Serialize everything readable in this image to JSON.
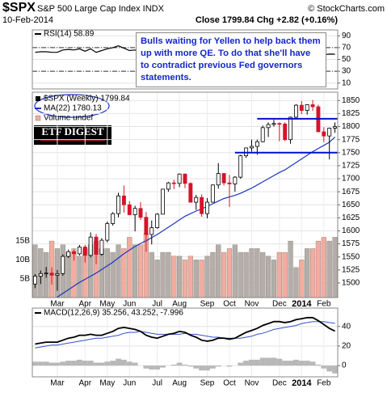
{
  "header": {
    "symbol": "$SPX",
    "name": "S&P 500 Large Cap Index INDX",
    "source": "© StockCharts.com",
    "date": "10-Feb-2014",
    "quote": "Close 1799.84 Chg +2.82 (+0.16%)"
  },
  "annotation": "Bulls waiting for Yellen to help back them up with more QE. To do that she'll have to contradict previous Fed governors statements.",
  "logo": "ETF DIGEST",
  "chart_data": [
    {
      "type": "line",
      "title": "RSI(14) 58.89",
      "color": "#000000",
      "fill": "#cfe0f5",
      "xlim": [
        -0.5,
        54.5
      ],
      "ylim": [
        0,
        100
      ],
      "yticks": [
        10,
        30,
        50,
        70,
        90
      ],
      "levels": [
        30,
        70
      ],
      "values": [
        62,
        63,
        63,
        62,
        62,
        66,
        67,
        66,
        68,
        64,
        68,
        62,
        65,
        68,
        70,
        73,
        69,
        65,
        66,
        63,
        58,
        60,
        63,
        67,
        68,
        68,
        69,
        66,
        61,
        62,
        58,
        61,
        65,
        67,
        64,
        64,
        65,
        69,
        70,
        70,
        71,
        73,
        73,
        73,
        73,
        67,
        70,
        72,
        69,
        70,
        69,
        60,
        58,
        59,
        58.89
      ]
    },
    {
      "type": "candlestick",
      "title": "$SPX (Weekly) 1799.84",
      "up_color": "#000000",
      "down_color": "#d4142a",
      "xlim": [
        -0.5,
        54.5
      ],
      "ylim": [
        1472,
        1866
      ],
      "yticks": [
        1500,
        1525,
        1550,
        1575,
        1600,
        1625,
        1650,
        1675,
        1700,
        1725,
        1750,
        1775,
        1800,
        1825,
        1850
      ],
      "xticks": [
        {
          "value": 4,
          "label": "Mar"
        },
        {
          "value": 9,
          "label": "Apr"
        },
        {
          "value": 13,
          "label": "May"
        },
        {
          "value": 17,
          "label": "Jun"
        },
        {
          "value": 22,
          "label": "Jul"
        },
        {
          "value": 26,
          "label": "Aug"
        },
        {
          "value": 31,
          "label": "Sep"
        },
        {
          "value": 35,
          "label": "Oct"
        },
        {
          "value": 39,
          "label": "Nov"
        },
        {
          "value": 44,
          "label": "Dec"
        },
        {
          "value": 48,
          "label": "2014"
        },
        {
          "value": 52,
          "label": "Feb"
        }
      ],
      "open": [
        1498,
        1513,
        1518,
        1519,
        1515,
        1518,
        1551,
        1560,
        1556,
        1569,
        1553,
        1588,
        1555,
        1582,
        1614,
        1633,
        1667,
        1650,
        1631,
        1643,
        1626,
        1593,
        1606,
        1632,
        1680,
        1692,
        1691,
        1709,
        1691,
        1655,
        1664,
        1633,
        1655,
        1688,
        1710,
        1692,
        1690,
        1703,
        1744,
        1759,
        1762,
        1771,
        1798,
        1804,
        1806,
        1805,
        1775,
        1818,
        1841,
        1831,
        1842,
        1838,
        1790,
        1782,
        1797
      ],
      "high": [
        1517,
        1524,
        1531,
        1530,
        1525,
        1555,
        1564,
        1564,
        1573,
        1573,
        1597,
        1594,
        1586,
        1618,
        1636,
        1673,
        1687,
        1657,
        1648,
        1655,
        1636,
        1620,
        1634,
        1680,
        1694,
        1698,
        1710,
        1710,
        1693,
        1669,
        1670,
        1663,
        1689,
        1730,
        1711,
        1707,
        1705,
        1746,
        1760,
        1775,
        1775,
        1802,
        1808,
        1813,
        1808,
        1808,
        1819,
        1843,
        1849,
        1843,
        1851,
        1842,
        1799,
        1798,
        1808
      ],
      "low": [
        1490,
        1498,
        1510,
        1497,
        1485,
        1514,
        1548,
        1543,
        1553,
        1539,
        1549,
        1536,
        1552,
        1578,
        1610,
        1626,
        1635,
        1630,
        1599,
        1621,
        1560,
        1574,
        1604,
        1632,
        1675,
        1680,
        1684,
        1682,
        1654,
        1640,
        1627,
        1624,
        1654,
        1681,
        1687,
        1646,
        1675,
        1700,
        1740,
        1752,
        1746,
        1770,
        1780,
        1800,
        1772,
        1772,
        1767,
        1815,
        1824,
        1823,
        1830,
        1790,
        1770,
        1737,
        1788
      ],
      "close": [
        1513,
        1518,
        1519,
        1515,
        1518,
        1551,
        1560,
        1556,
        1569,
        1553,
        1588,
        1555,
        1582,
        1614,
        1633,
        1667,
        1650,
        1631,
        1643,
        1626,
        1593,
        1606,
        1632,
        1680,
        1692,
        1691,
        1709,
        1691,
        1655,
        1664,
        1633,
        1655,
        1688,
        1710,
        1692,
        1690,
        1703,
        1744,
        1759,
        1762,
        1771,
        1798,
        1804,
        1806,
        1805,
        1775,
        1818,
        1841,
        1831,
        1842,
        1838,
        1790,
        1782,
        1797,
        1799.84
      ],
      "ma": {
        "name": "MA(22) 1780.13",
        "color": "#1b36c2",
        "values": [
          1445,
          1452,
          1459,
          1466,
          1473,
          1480,
          1487,
          1494,
          1501,
          1507,
          1513,
          1519,
          1526,
          1533,
          1540,
          1548,
          1556,
          1563,
          1570,
          1576,
          1581,
          1587,
          1593,
          1600,
          1607,
          1614,
          1621,
          1628,
          1633,
          1638,
          1642,
          1647,
          1652,
          1657,
          1662,
          1665,
          1668,
          1672,
          1677,
          1682,
          1688,
          1694,
          1700,
          1706,
          1712,
          1717,
          1724,
          1731,
          1738,
          1745,
          1752,
          1758,
          1764,
          1770,
          1780.13
        ]
      },
      "volume": {
        "name": "Volume undef",
        "up_color": "#b3aea9",
        "down_color": "#f2aca0",
        "ylim": [
          0,
          54.5
        ],
        "yticks": [
          {
            "value": 5,
            "label": "5B"
          },
          {
            "value": 10,
            "label": "10B"
          },
          {
            "value": 15,
            "label": "15B"
          }
        ],
        "values": [
          14,
          13,
          12,
          15,
          13,
          14,
          12,
          13,
          11,
          13,
          14,
          15,
          13,
          13,
          12,
          14,
          13,
          16,
          14,
          14,
          17,
          12,
          10,
          12,
          12,
          11,
          11,
          10,
          11,
          10,
          10,
          11,
          12,
          14,
          12,
          13,
          14,
          12,
          12,
          13,
          13,
          12,
          11,
          10,
          12,
          12,
          15,
          8,
          10,
          13,
          13,
          15,
          16,
          15,
          16
        ]
      },
      "levels": [
        {
          "value": 1815,
          "start": 40
        },
        {
          "value": 1750,
          "start": 36
        }
      ],
      "level_color": "#0010d0"
    },
    {
      "type": "macd",
      "title": "MACD(12,26,9) 35.256, 43.252, -7.996",
      "xlim": [
        -0.5,
        54.5
      ],
      "ylim": [
        -11.5,
        58.8
      ],
      "yticks": [
        0,
        20,
        40
      ],
      "xticks": [
        {
          "value": 4,
          "label": "Mar"
        },
        {
          "value": 9,
          "label": "Apr"
        },
        {
          "value": 13,
          "label": "May"
        },
        {
          "value": 17,
          "label": "Jun"
        },
        {
          "value": 22,
          "label": "Jul"
        },
        {
          "value": 26,
          "label": "Aug"
        },
        {
          "value": 31,
          "label": "Sep"
        },
        {
          "value": 35,
          "label": "Oct"
        },
        {
          "value": 39,
          "label": "Nov"
        },
        {
          "value": 44,
          "label": "Dec"
        },
        {
          "value": 48,
          "label": "2014"
        },
        {
          "value": 52,
          "label": "Feb"
        }
      ],
      "macd_color": "#000000",
      "signal_color": "#3550c8",
      "histogram_color": "#b8b8b8",
      "macd": [
        22,
        23,
        24,
        24,
        24,
        26,
        28,
        29,
        31,
        31,
        32,
        31,
        31,
        33,
        35,
        38,
        39,
        38,
        37,
        35,
        31,
        29,
        28,
        30,
        32,
        33,
        35,
        34,
        31,
        29,
        26,
        25,
        26,
        28,
        28,
        27,
        28,
        31,
        34,
        36,
        38,
        41,
        43,
        45,
        45,
        44,
        45,
        47,
        48,
        49,
        49,
        46,
        42,
        38,
        35.256
      ],
      "signal": [
        18,
        19,
        20,
        21,
        21,
        22,
        23,
        24,
        25,
        26,
        27,
        28,
        28,
        29,
        30,
        31,
        33,
        34,
        34,
        35,
        34,
        33,
        32,
        32,
        32,
        32,
        32,
        33,
        32,
        32,
        31,
        30,
        29,
        29,
        28,
        28,
        28,
        28,
        29,
        30,
        32,
        33,
        35,
        37,
        38,
        39,
        40,
        41,
        43,
        44,
        45,
        45,
        45,
        44,
        43.252
      ],
      "histogram": [
        4,
        4,
        4,
        3,
        3,
        4,
        5,
        5,
        6,
        5,
        5,
        3,
        3,
        4,
        5,
        7,
        6,
        4,
        3,
        0,
        -3,
        -4,
        -4,
        -2,
        0,
        1,
        3,
        1,
        -1,
        -3,
        -5,
        -5,
        -3,
        -1,
        0,
        -1,
        0,
        3,
        5,
        6,
        6,
        8,
        8,
        8,
        7,
        5,
        5,
        6,
        5,
        5,
        4,
        1,
        -3,
        -6,
        -7.996
      ]
    }
  ]
}
